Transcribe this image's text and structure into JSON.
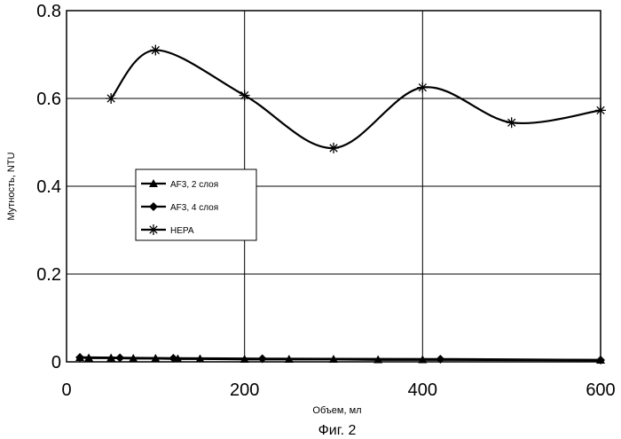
{
  "chart_data": {
    "type": "line",
    "title": "",
    "xlabel": "Объем, мл",
    "ylabel": "Мутность, NTU",
    "xlim": [
      0,
      600
    ],
    "ylim": [
      0,
      0.8
    ],
    "x_ticks": [
      "0",
      "200",
      "400",
      "600"
    ],
    "y_ticks": [
      "0",
      "0.2",
      "0.4",
      "0.6",
      "0.8"
    ],
    "grid": true,
    "legend_position": "left-center",
    "series": [
      {
        "name": "AF3, 2 слоя",
        "marker": "triangle",
        "smooth": false,
        "x": [
          15,
          25,
          50,
          75,
          100,
          125,
          150,
          200,
          250,
          300,
          350,
          400,
          600
        ],
        "y": [
          0.01,
          0.009,
          0.009,
          0.008,
          0.008,
          0.007,
          0.007,
          0.006,
          0.006,
          0.006,
          0.005,
          0.005,
          0.004
        ]
      },
      {
        "name": "AF3, 4 слоя",
        "marker": "diamond",
        "smooth": false,
        "x": [
          15,
          60,
          120,
          220,
          420,
          600
        ],
        "y": [
          0.01,
          0.009,
          0.008,
          0.007,
          0.006,
          0.004
        ]
      },
      {
        "name": "HEPA",
        "marker": "asterisk",
        "smooth": true,
        "x": [
          50,
          100,
          200,
          300,
          400,
          500,
          600
        ],
        "y": [
          0.6,
          0.71,
          0.607,
          0.487,
          0.625,
          0.545,
          0.573
        ]
      }
    ]
  },
  "caption": "Фиг. 2"
}
